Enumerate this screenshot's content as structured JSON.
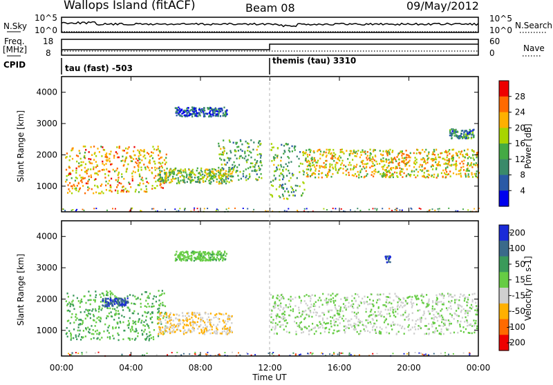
{
  "header": {
    "title": "Wallops Island (fitACF)",
    "beam": "Beam 08",
    "date": "09/May/2012"
  },
  "nsky_panel": {
    "left_label": "N.Sky",
    "left_ticks": [
      "10^5",
      "10^0"
    ],
    "right_label": "N.Search",
    "right_ticks": [
      "10^5",
      "10^0"
    ]
  },
  "freq_panel": {
    "left_label_1": "Freq.",
    "left_label_2": "[MHz]",
    "left_ticks": [
      "18",
      "8"
    ],
    "right_label": "Nave",
    "right_ticks": [
      "60",
      "0"
    ],
    "cpid_label": "CPID",
    "cpid_entries": [
      "tau (fast) -503",
      "themis (tau) 3310"
    ]
  },
  "chart_data": [
    {
      "type": "heatmap",
      "name": "power",
      "xlabel": "Time UT",
      "ylabel": "Slant Range [km]",
      "xlim": [
        0,
        24
      ],
      "ylim": [
        180,
        4500
      ],
      "x_ticks": [
        "00:00",
        "04:00",
        "08:00",
        "12:00",
        "16:00",
        "20:00",
        "00:00"
      ],
      "y_ticks": [
        1000,
        2000,
        3000,
        4000
      ],
      "colorbar_label": "Power [dB]",
      "colorbar_ticks": [
        4,
        8,
        12,
        16,
        20,
        24,
        28
      ],
      "colorbar_range": [
        0,
        32
      ],
      "colors": [
        "#0000ee",
        "#2a5aa6",
        "#3a8a6a",
        "#44aa44",
        "#a8d400",
        "#ffb000",
        "#ff6a00",
        "#ee0000"
      ],
      "echo_bands": [
        {
          "t_start": 0.2,
          "t_end": 6.0,
          "r_low": 800,
          "r_high": 2300,
          "level": 22
        },
        {
          "t_start": 5.5,
          "t_end": 9.8,
          "r_low": 1100,
          "r_high": 1600,
          "level": 16
        },
        {
          "t_start": 6.5,
          "t_end": 9.5,
          "r_low": 3250,
          "r_high": 3550,
          "level": 6
        },
        {
          "t_start": 9.0,
          "t_end": 11.5,
          "r_low": 1200,
          "r_high": 2500,
          "level": 14
        },
        {
          "t_start": 12.0,
          "t_end": 14.0,
          "r_low": 600,
          "r_high": 2400,
          "level": 14
        },
        {
          "t_start": 14.0,
          "t_end": 24.0,
          "r_low": 1300,
          "r_high": 2200,
          "level": 20
        },
        {
          "t_start": 22.3,
          "t_end": 23.7,
          "r_low": 2550,
          "r_high": 2850,
          "level": 10
        }
      ]
    },
    {
      "type": "heatmap",
      "name": "velocity",
      "xlabel": "Time UT",
      "ylabel": "Slant Range [km]",
      "xlim": [
        0,
        24
      ],
      "ylim": [
        180,
        4500
      ],
      "x_ticks": [
        "00:00",
        "04:00",
        "08:00",
        "12:00",
        "16:00",
        "20:00",
        "00:00"
      ],
      "y_ticks": [
        1000,
        2000,
        3000,
        4000
      ],
      "colorbar_label": "Velocity [m s-1]",
      "colorbar_ticks": [
        200,
        100,
        50,
        15,
        -15,
        -50,
        -100,
        -200
      ],
      "colorbar_range": [
        -250,
        250
      ],
      "colors": [
        "#1a2ad8",
        "#3a6a8a",
        "#3a9a5a",
        "#66cc44",
        "#cfcfcf",
        "#ffb000",
        "#ff6a00",
        "#ee0000"
      ],
      "echo_bands": [
        {
          "t_start": 0.2,
          "t_end": 6.0,
          "r_low": 700,
          "r_high": 2300,
          "level": 60
        },
        {
          "t_start": 2.3,
          "t_end": 3.8,
          "r_low": 1800,
          "r_high": 2050,
          "level": 180
        },
        {
          "t_start": 5.5,
          "t_end": 9.8,
          "r_low": 900,
          "r_high": 1600,
          "level": -60
        },
        {
          "t_start": 6.5,
          "t_end": 9.5,
          "r_low": 3250,
          "r_high": 3550,
          "level": 40
        },
        {
          "t_start": 12.0,
          "t_end": 24.0,
          "r_low": 900,
          "r_high": 2200,
          "level": 0
        },
        {
          "t_start": 18.6,
          "t_end": 18.9,
          "r_low": 3200,
          "r_high": 3400,
          "level": 200
        }
      ]
    }
  ],
  "colors": {
    "vertical_marker": "#aaaaaa",
    "frame": "#000000"
  }
}
